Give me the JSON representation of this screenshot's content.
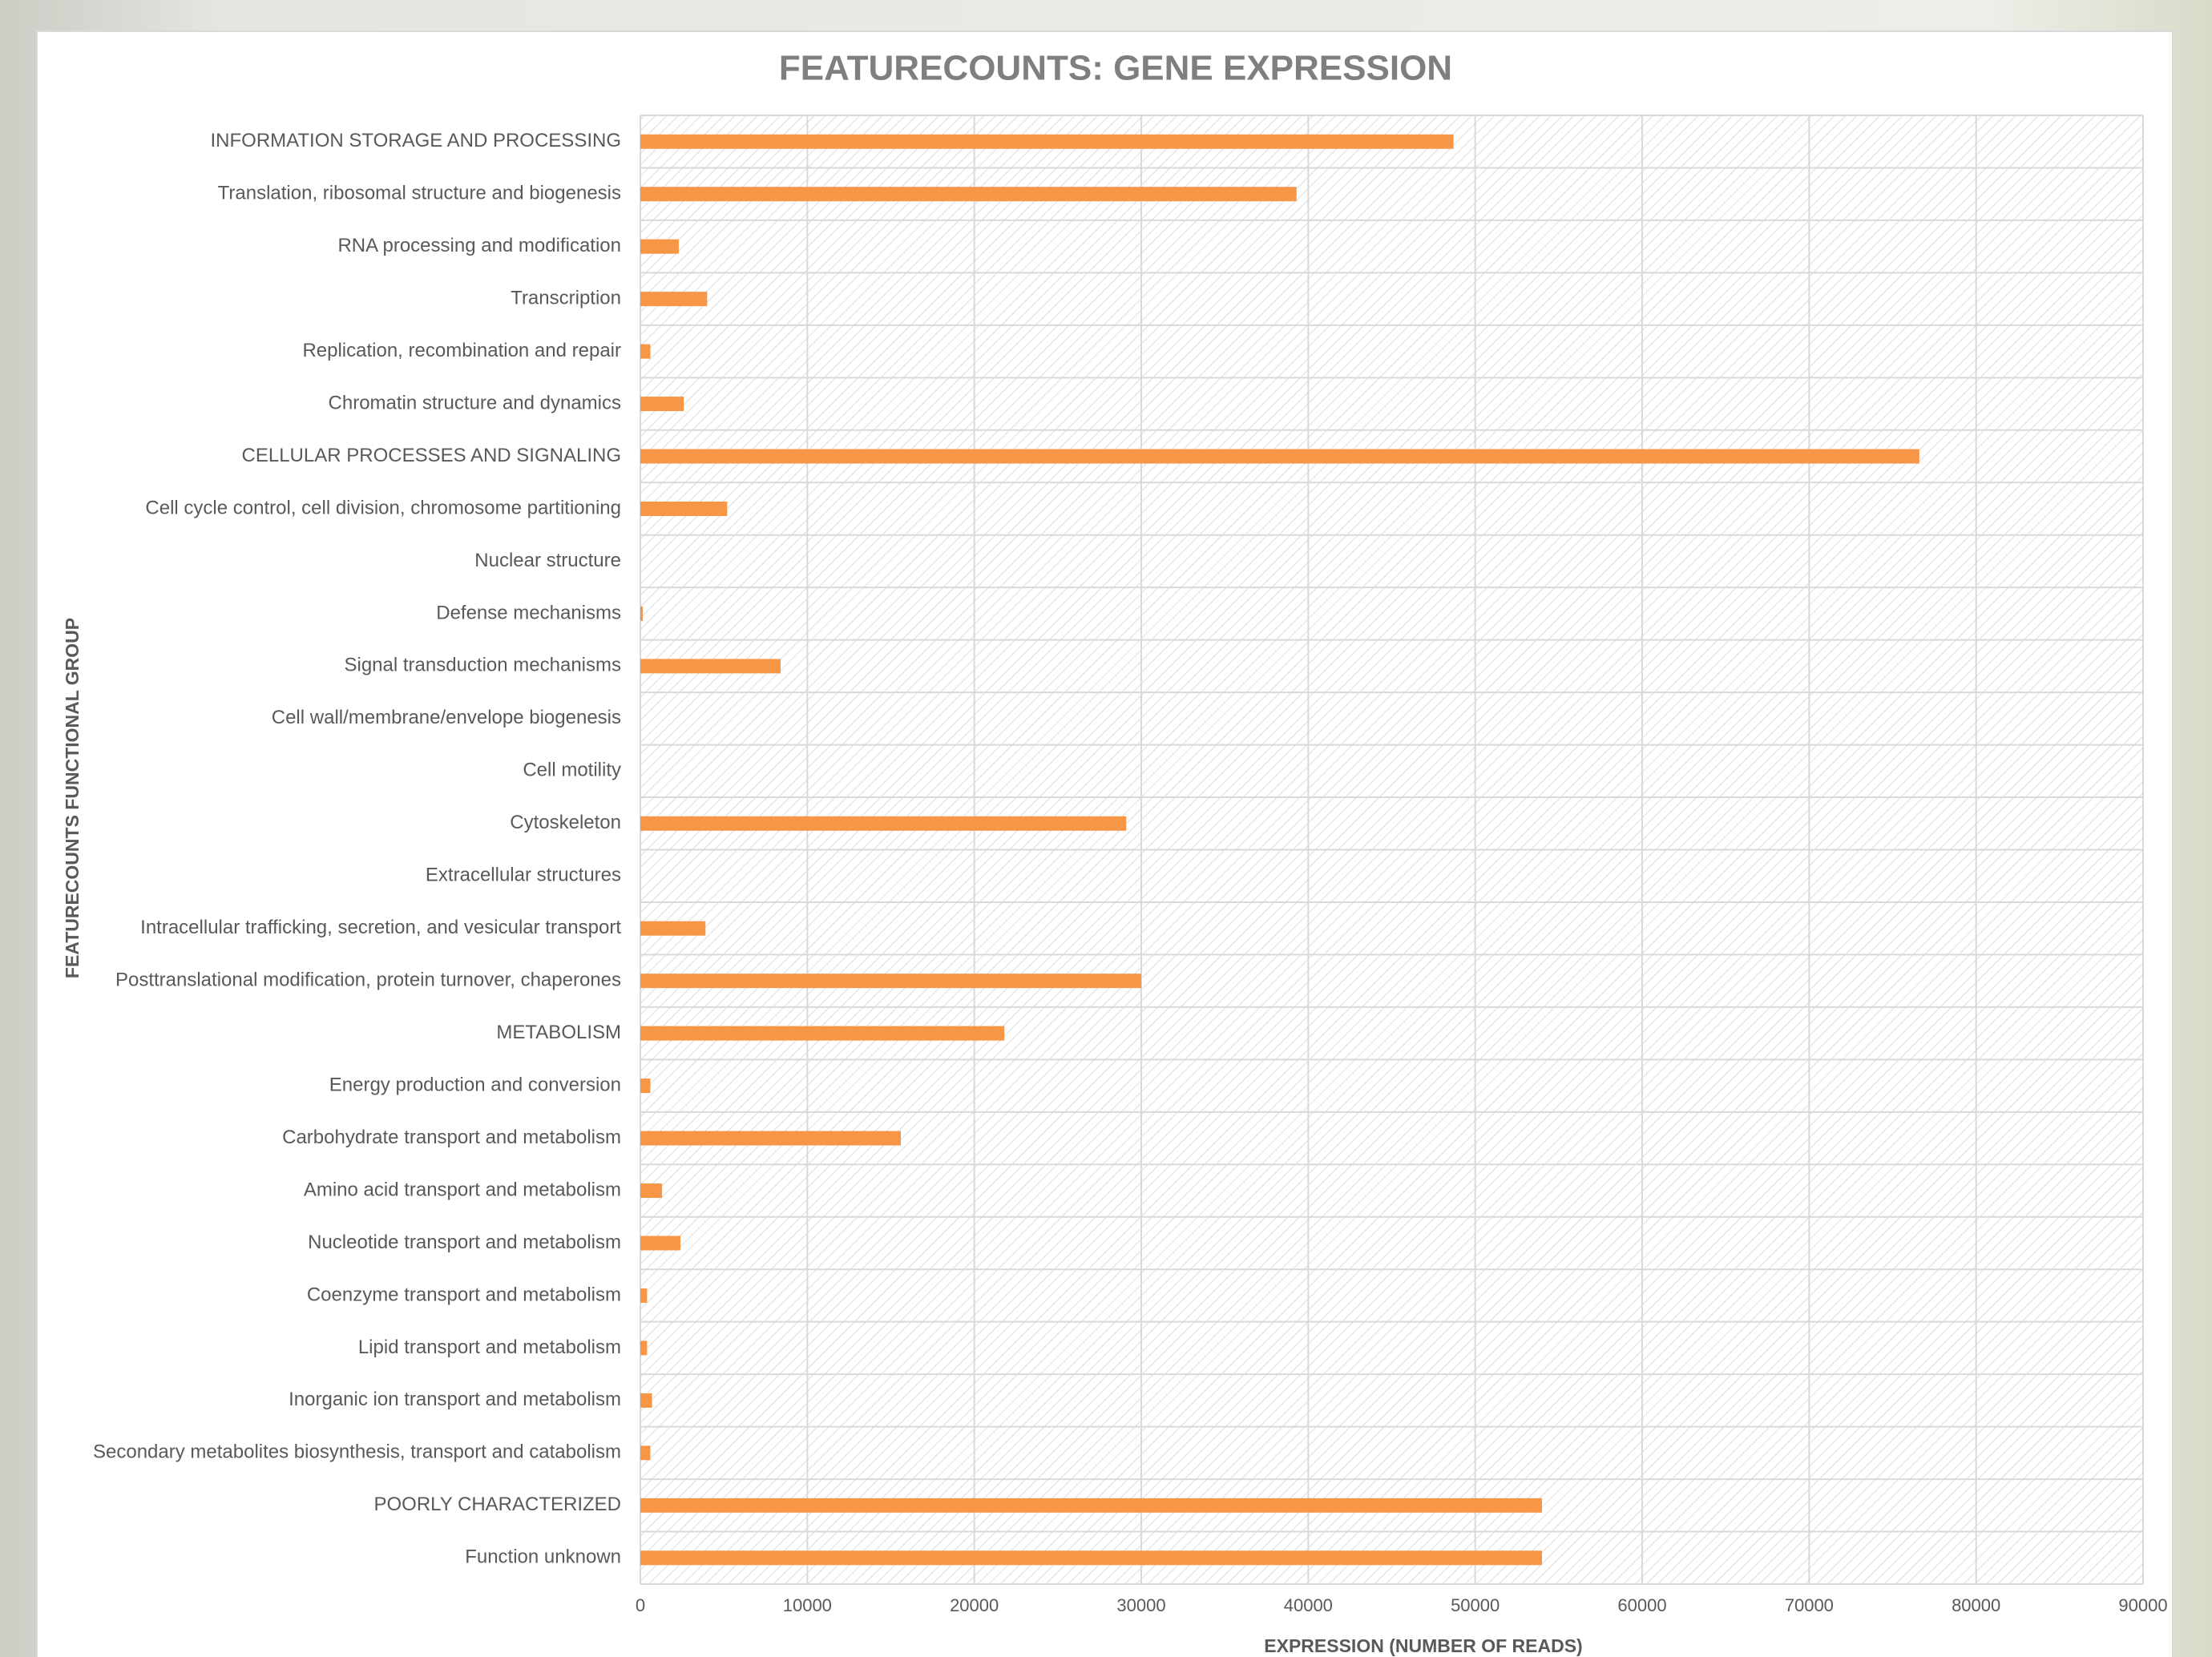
{
  "chart_data": {
    "type": "bar",
    "orientation": "horizontal",
    "title": "FEATURECOUNTS: GENE EXPRESSION",
    "x_label": "EXPRESSION (NUMBER OF READS)",
    "y_label": "FEATURECOUNTS  FUNCTIONAL  GROUP",
    "categories": [
      "INFORMATION STORAGE AND PROCESSING",
      "Translation, ribosomal structure and biogenesis",
      "RNA processing and modification",
      "Transcription",
      "Replication, recombination and repair",
      "Chromatin structure and dynamics",
      "CELLULAR PROCESSES AND SIGNALING",
      "Cell cycle control, cell division, chromosome partitioning",
      "Nuclear structure",
      "Defense mechanisms",
      "Signal transduction mechanisms",
      "Cell wall/membrane/envelope biogenesis",
      "Cell motility",
      "Cytoskeleton",
      "Extracellular structures",
      "Intracellular trafficking, secretion, and vesicular transport",
      "Posttranslational modification, protein turnover, chaperones",
      "METABOLISM",
      "Energy production and conversion",
      "Carbohydrate transport and metabolism",
      "Amino acid transport and metabolism",
      "Nucleotide transport and metabolism",
      "Coenzyme transport and metabolism",
      "Lipid transport and metabolism",
      "Inorganic ion transport and metabolism",
      "Secondary metabolites biosynthesis, transport and catabolism",
      "POORLY CHARACTERIZED",
      "Function unknown"
    ],
    "values": [
      48700,
      39300,
      2300,
      4000,
      600,
      2600,
      76600,
      5200,
      0,
      150,
      8400,
      0,
      0,
      29100,
      0,
      3900,
      30000,
      21800,
      600,
      15600,
      1300,
      2400,
      400,
      400,
      700,
      600,
      54000,
      54000
    ],
    "color": "#f79646",
    "xlim": [
      0,
      90000
    ],
    "xticks": [
      0,
      10000,
      20000,
      30000,
      40000,
      50000,
      60000,
      70000,
      80000,
      90000
    ],
    "grid": true
  }
}
